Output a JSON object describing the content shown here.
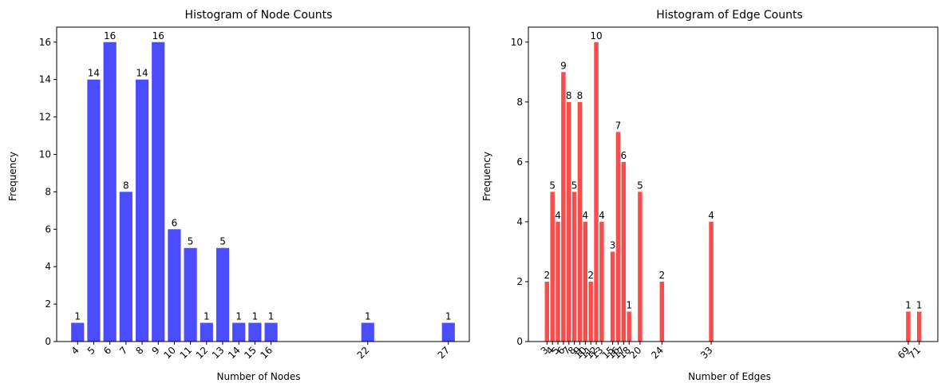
{
  "chart_data": [
    {
      "type": "bar",
      "title": "Histogram of Node Counts",
      "xlabel": "Number of Nodes",
      "ylabel": "Frequency",
      "color": "#4b4bff",
      "x": [
        4,
        5,
        6,
        7,
        8,
        9,
        10,
        11,
        12,
        13,
        14,
        15,
        16,
        22,
        27
      ],
      "values": [
        1,
        14,
        16,
        8,
        14,
        16,
        6,
        5,
        1,
        5,
        1,
        1,
        1,
        1,
        1
      ],
      "xlim": [
        2.7,
        28.3
      ],
      "ylim": [
        0,
        16.8
      ],
      "yticks": [
        0,
        2,
        4,
        6,
        8,
        10,
        12,
        14,
        16
      ],
      "grid": false
    },
    {
      "type": "bar",
      "title": "Histogram of Edge Counts",
      "xlabel": "Number of Edges",
      "ylabel": "Frequency",
      "color": "#f74d4d",
      "x": [
        3,
        4,
        5,
        6,
        7,
        8,
        9,
        10,
        11,
        12,
        13,
        15,
        16,
        17,
        18,
        20,
        24,
        33,
        69,
        71
      ],
      "values": [
        2,
        5,
        4,
        9,
        8,
        5,
        8,
        4,
        2,
        10,
        4,
        3,
        7,
        6,
        1,
        5,
        2,
        4,
        1,
        1
      ],
      "xlim": [
        -0.4,
        74.4
      ],
      "ylim": [
        0,
        10.5
      ],
      "yticks": [
        0,
        2,
        4,
        6,
        8,
        10
      ],
      "grid": false
    }
  ]
}
